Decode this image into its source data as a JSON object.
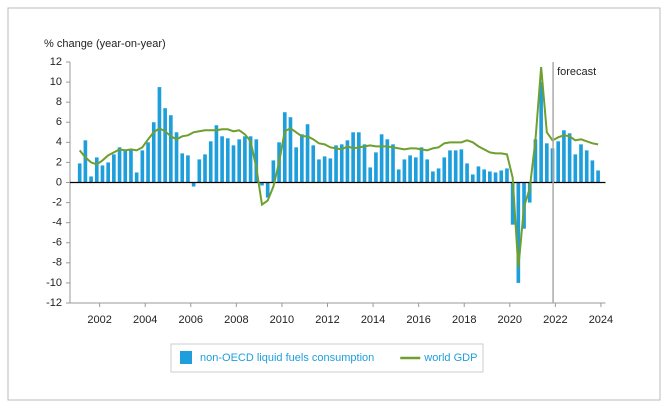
{
  "chart_data": {
    "type": "bar_line",
    "y_label": "% change (year-on-year)",
    "annotation": "forecast",
    "forecast_x": 2021.9,
    "xlim": [
      2000.7,
      2024.2
    ],
    "xticks": [
      2002,
      2004,
      2006,
      2008,
      2010,
      2012,
      2014,
      2016,
      2018,
      2020,
      2022,
      2024
    ],
    "ylim": [
      -12,
      12
    ],
    "yticks": [
      -12,
      -10,
      -8,
      -6,
      -4,
      -2,
      0,
      2,
      4,
      6,
      8,
      10,
      12
    ],
    "x": [
      2001.125,
      2001.375,
      2001.625,
      2001.875,
      2002.125,
      2002.375,
      2002.625,
      2002.875,
      2003.125,
      2003.375,
      2003.625,
      2003.875,
      2004.125,
      2004.375,
      2004.625,
      2004.875,
      2005.125,
      2005.375,
      2005.625,
      2005.875,
      2006.125,
      2006.375,
      2006.625,
      2006.875,
      2007.125,
      2007.375,
      2007.625,
      2007.875,
      2008.125,
      2008.375,
      2008.625,
      2008.875,
      2009.125,
      2009.375,
      2009.625,
      2009.875,
      2010.125,
      2010.375,
      2010.625,
      2010.875,
      2011.125,
      2011.375,
      2011.625,
      2011.875,
      2012.125,
      2012.375,
      2012.625,
      2012.875,
      2013.125,
      2013.375,
      2013.625,
      2013.875,
      2014.125,
      2014.375,
      2014.625,
      2014.875,
      2015.125,
      2015.375,
      2015.625,
      2015.875,
      2016.125,
      2016.375,
      2016.625,
      2016.875,
      2017.125,
      2017.375,
      2017.625,
      2017.875,
      2018.125,
      2018.375,
      2018.625,
      2018.875,
      2019.125,
      2019.375,
      2019.625,
      2019.875,
      2020.125,
      2020.375,
      2020.625,
      2020.875,
      2021.125,
      2021.375,
      2021.625,
      2021.875,
      2022.125,
      2022.375,
      2022.625,
      2022.875,
      2023.125,
      2023.375,
      2023.625,
      2023.875
    ],
    "series": [
      {
        "name": "non-OECD liquid fuels consumption",
        "type": "bar",
        "color": "#1e9fdc",
        "values": [
          1.9,
          4.2,
          0.6,
          2.5,
          1.7,
          2.0,
          2.8,
          3.5,
          3.3,
          3.3,
          1.0,
          3.2,
          4.0,
          6.0,
          9.5,
          7.4,
          6.7,
          5.0,
          2.9,
          2.7,
          -0.4,
          2.3,
          2.8,
          4.1,
          5.7,
          4.6,
          4.4,
          3.7,
          4.3,
          4.6,
          4.6,
          4.3,
          -0.3,
          -1.5,
          2.2,
          4.0,
          7.0,
          6.5,
          3.5,
          4.8,
          5.8,
          3.7,
          2.3,
          2.6,
          2.4,
          3.7,
          3.8,
          4.2,
          5.0,
          5.0,
          3.8,
          1.5,
          3.0,
          4.8,
          4.3,
          3.8,
          1.3,
          2.3,
          2.7,
          2.5,
          3.5,
          2.3,
          1.1,
          1.4,
          2.5,
          3.2,
          3.2,
          3.3,
          1.9,
          0.8,
          1.6,
          1.3,
          1.1,
          1.0,
          1.2,
          1.4,
          -4.2,
          -10.0,
          -4.6,
          -2.0,
          4.3,
          10.0,
          3.9,
          3.4,
          4.1,
          5.2,
          4.9,
          2.8,
          3.8,
          3.2,
          2.2,
          1.2
        ]
      },
      {
        "name": "world GDP",
        "type": "line",
        "color": "#6e9f2f",
        "values": [
          3.2,
          2.5,
          2.0,
          1.8,
          2.2,
          2.7,
          3.0,
          3.3,
          3.2,
          3.3,
          3.2,
          3.5,
          4.3,
          5.0,
          5.4,
          5.1,
          4.6,
          4.3,
          4.6,
          4.7,
          5.0,
          5.1,
          5.2,
          5.2,
          5.2,
          5.3,
          5.3,
          5.1,
          5.2,
          4.8,
          4.1,
          1.5,
          -2.2,
          -1.8,
          -0.4,
          2.0,
          5.1,
          5.4,
          5.0,
          4.6,
          4.6,
          4.3,
          3.9,
          3.8,
          3.5,
          3.4,
          3.3,
          3.6,
          3.4,
          3.5,
          3.6,
          3.7,
          3.6,
          3.6,
          3.6,
          3.5,
          3.4,
          3.3,
          3.4,
          3.4,
          3.3,
          3.2,
          3.4,
          3.5,
          3.9,
          4.0,
          4.0,
          4.0,
          4.2,
          4.0,
          3.6,
          3.3,
          3.0,
          2.9,
          2.9,
          2.8,
          0.5,
          -8.5,
          -2.4,
          -0.6,
          4.2,
          11.5,
          5.0,
          4.2,
          4.5,
          4.7,
          4.6,
          4.2,
          4.3,
          4.1,
          3.9,
          3.8
        ]
      }
    ]
  }
}
